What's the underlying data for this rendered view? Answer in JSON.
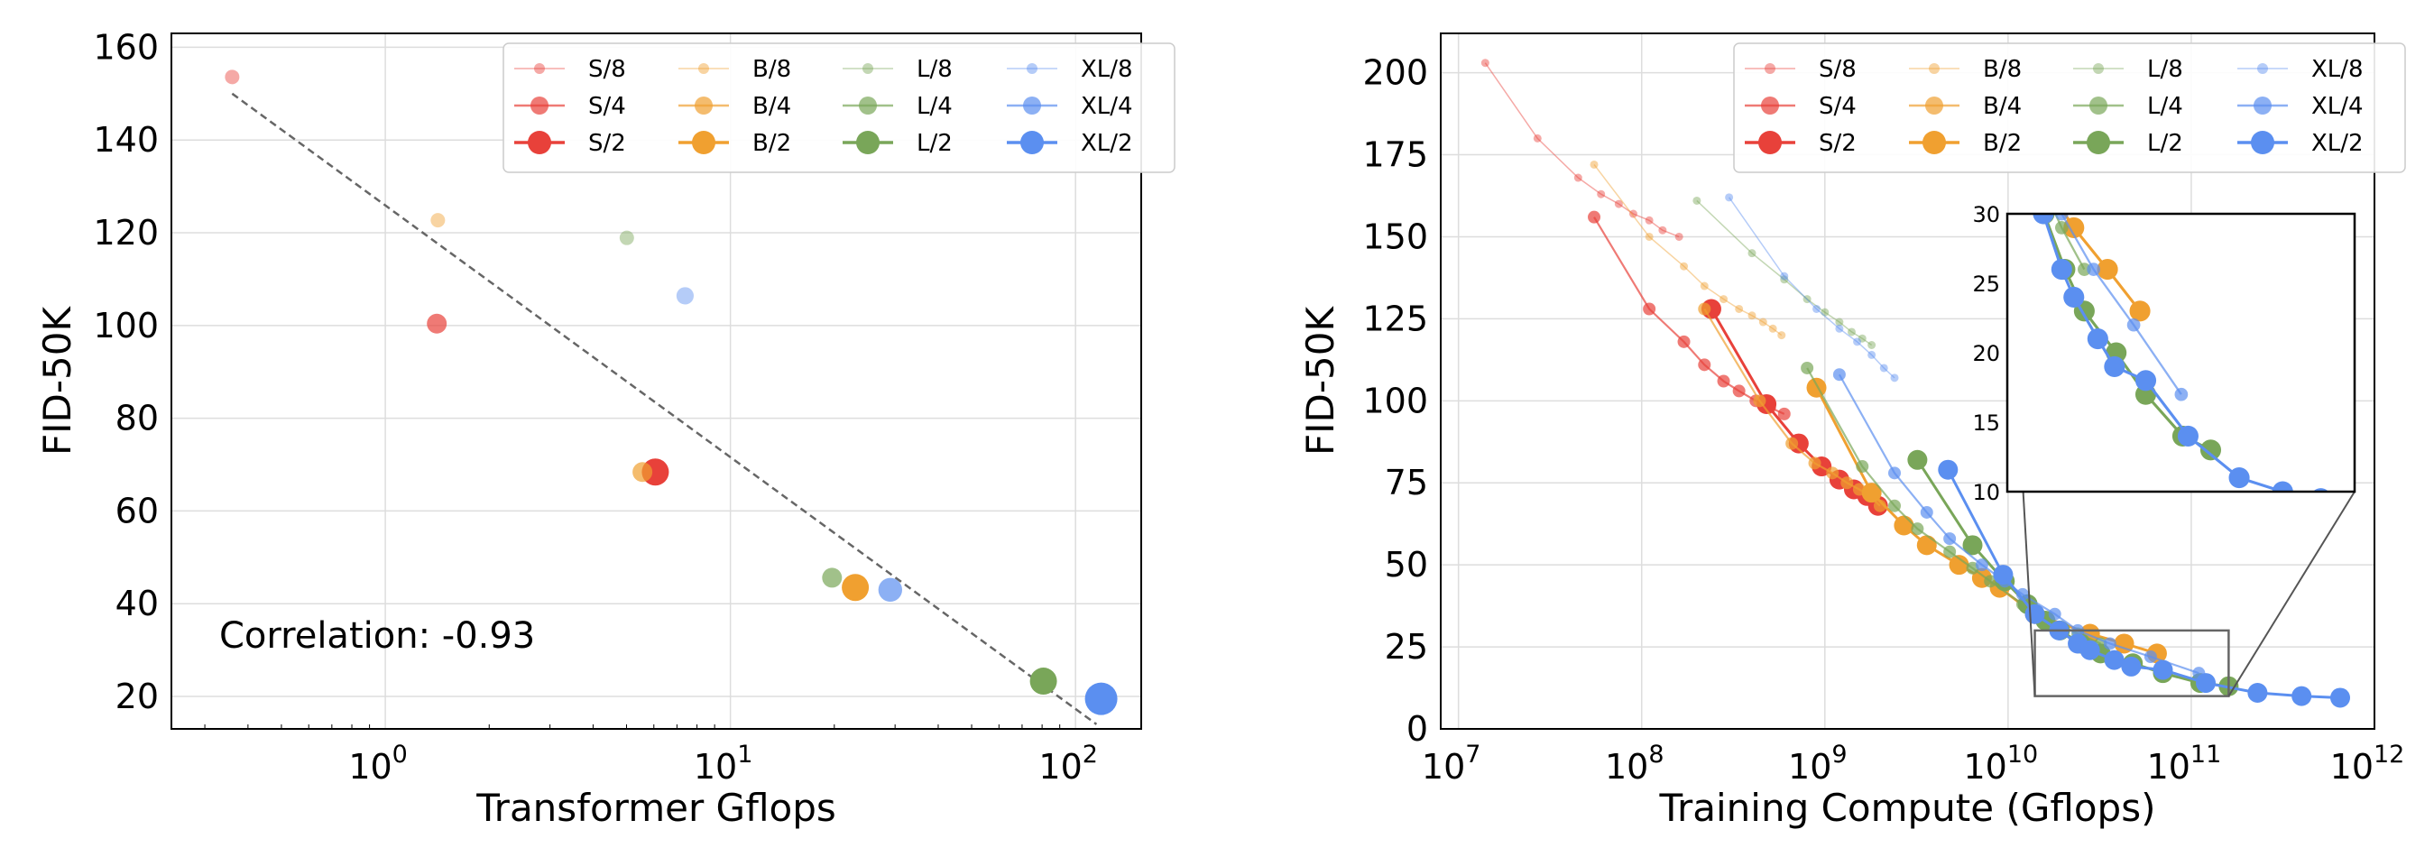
{
  "chart_data": [
    {
      "type": "scatter",
      "xlabel": "Transformer Gflops",
      "ylabel": "FID-50K",
      "xscale": "log",
      "xlim": [
        0.24,
        155
      ],
      "ylim": [
        13,
        163
      ],
      "xticks": [
        {
          "value": 1,
          "base": "10",
          "exp": "0"
        },
        {
          "value": 10,
          "base": "10",
          "exp": "1"
        },
        {
          "value": 100,
          "base": "10",
          "exp": "2"
        }
      ],
      "yticks": [
        "20",
        "40",
        "60",
        "80",
        "100",
        "120",
        "140",
        "160"
      ],
      "grid": true,
      "legend_position": "top-right",
      "legend": [
        "S/8",
        "B/8",
        "L/8",
        "XL/8",
        "S/4",
        "B/4",
        "L/4",
        "XL/4",
        "S/2",
        "B/2",
        "L/2",
        "XL/2"
      ],
      "annotation": "Correlation: -0.93",
      "trend_line": {
        "x": [
          0.36,
          115
        ],
        "y": [
          150,
          14
        ]
      },
      "points": [
        {
          "model": "S/8",
          "gflops": 0.36,
          "fid": 153.6
        },
        {
          "model": "S/4",
          "gflops": 1.41,
          "fid": 100.4
        },
        {
          "model": "S/2",
          "gflops": 6.06,
          "fid": 68.4
        },
        {
          "model": "B/8",
          "gflops": 1.42,
          "fid": 122.7
        },
        {
          "model": "B/4",
          "gflops": 5.56,
          "fid": 68.4
        },
        {
          "model": "B/2",
          "gflops": 23.01,
          "fid": 43.5
        },
        {
          "model": "L/8",
          "gflops": 5.01,
          "fid": 118.9
        },
        {
          "model": "L/4",
          "gflops": 19.7,
          "fid": 45.6
        },
        {
          "model": "L/2",
          "gflops": 80.71,
          "fid": 23.3
        },
        {
          "model": "XL/8",
          "gflops": 7.39,
          "fid": 106.4
        },
        {
          "model": "XL/4",
          "gflops": 29.05,
          "fid": 43.0
        },
        {
          "model": "XL/2",
          "gflops": 118.64,
          "fid": 19.5
        }
      ]
    },
    {
      "type": "line",
      "xlabel": "Training Compute (Gflops)",
      "ylabel": "FID-50K",
      "xscale": "log",
      "xlim": [
        8000000,
        1000000000000
      ],
      "ylim": [
        0,
        212
      ],
      "xticks": [
        {
          "value": 10000000,
          "base": "10",
          "exp": "7"
        },
        {
          "value": 100000000,
          "base": "10",
          "exp": "8"
        },
        {
          "value": 1000000000,
          "base": "10",
          "exp": "9"
        },
        {
          "value": 10000000000,
          "base": "10",
          "exp": "10"
        },
        {
          "value": 100000000000,
          "base": "10",
          "exp": "11"
        },
        {
          "value": 1000000000000,
          "base": "10",
          "exp": "12"
        }
      ],
      "yticks": [
        "0",
        "25",
        "50",
        "75",
        "100",
        "125",
        "150",
        "175",
        "200"
      ],
      "grid": true,
      "legend_position": "top-right",
      "legend": [
        "S/8",
        "B/8",
        "L/8",
        "XL/8",
        "S/4",
        "B/4",
        "L/4",
        "XL/4",
        "S/2",
        "B/2",
        "L/2",
        "XL/2"
      ],
      "inset": {
        "xlim": [
          12000000000,
          1000000000000
        ],
        "ylim": [
          10,
          30
        ],
        "yticks": [
          "10",
          "15",
          "20",
          "25",
          "30"
        ],
        "zoom_box_x": [
          14000000000,
          160000000000
        ],
        "zoom_box_y": [
          10,
          30
        ]
      },
      "series": [
        {
          "name": "S/8",
          "x": [
            14000000,
            27000000,
            45000000,
            60000000,
            75000000,
            90000000,
            110000000,
            130000000,
            160000000
          ],
          "y": [
            203,
            180,
            168,
            163,
            160,
            157,
            155,
            152,
            150
          ]
        },
        {
          "name": "S/4",
          "x": [
            55000000,
            110000000,
            170000000,
            220000000,
            280000000,
            340000000,
            420000000,
            500000000,
            600000000
          ],
          "y": [
            156,
            128,
            118,
            111,
            106,
            103,
            100,
            98,
            96
          ]
        },
        {
          "name": "S/2",
          "x": [
            240000000,
            480000000,
            720000000,
            960000000,
            1200000000,
            1440000000,
            1700000000,
            1950000000
          ],
          "y": [
            128,
            99,
            87,
            80,
            76,
            73,
            71,
            68
          ]
        },
        {
          "name": "B/8",
          "x": [
            55000000,
            110000000,
            170000000,
            220000000,
            280000000,
            340000000,
            400000000,
            460000000,
            520000000,
            580000000
          ],
          "y": [
            172,
            150,
            141,
            135,
            131,
            128,
            126,
            124,
            122,
            120
          ]
        },
        {
          "name": "B/4",
          "x": [
            220000000,
            440000000,
            660000000,
            880000000,
            1100000000,
            1320000000,
            1540000000,
            1760000000,
            2000000000
          ],
          "y": [
            128,
            100,
            87,
            81,
            78,
            75,
            73,
            71,
            68
          ]
        },
        {
          "name": "B/2",
          "x": [
            900000000,
            1800000000,
            2700000000,
            3600000000,
            5400000000,
            7200000000,
            9000000000,
            14000000000,
            28000000000,
            43000000000,
            65000000000
          ],
          "y": [
            104,
            72,
            62,
            56,
            50,
            46,
            43,
            35,
            29,
            26,
            23
          ]
        },
        {
          "name": "L/8",
          "x": [
            200000000,
            400000000,
            600000000,
            800000000,
            1000000000,
            1200000000,
            1400000000,
            1600000000,
            1800000000
          ],
          "y": [
            161,
            145,
            137,
            131,
            127,
            124,
            121,
            119,
            117
          ]
        },
        {
          "name": "L/4",
          "x": [
            800000000,
            1600000000,
            2400000000,
            3200000000,
            4800000000,
            6400000000,
            8000000000,
            12000000000,
            16000000000,
            24000000000,
            32000000000
          ],
          "y": [
            110,
            80,
            68,
            61,
            54,
            49,
            45,
            38,
            34,
            29,
            26
          ]
        },
        {
          "name": "L/2",
          "x": [
            3200000000,
            6400000000,
            9600000000,
            12800000000,
            16000000000,
            19200000000,
            25000000000,
            32000000000,
            48000000000,
            70000000000,
            112000000000,
            160000000000
          ],
          "y": [
            82,
            56,
            45,
            38,
            33,
            30,
            26,
            23,
            20,
            17,
            14,
            13
          ]
        },
        {
          "name": "XL/8",
          "x": [
            300000000,
            600000000,
            900000000,
            1200000000,
            1500000000,
            1800000000,
            2100000000,
            2400000000
          ],
          "y": [
            162,
            138,
            128,
            122,
            118,
            114,
            110,
            107
          ]
        },
        {
          "name": "XL/4",
          "x": [
            1200000000,
            2400000000,
            3600000000,
            4800000000,
            7200000000,
            9600000000,
            12000000000,
            18000000000,
            24000000000,
            36000000000,
            60000000000,
            110000000000
          ],
          "y": [
            108,
            78,
            66,
            58,
            50,
            45,
            41,
            35,
            30,
            26,
            22,
            17
          ]
        },
        {
          "name": "XL/2",
          "x": [
            4700000000,
            9400000000,
            14000000000,
            19000000000,
            24000000000,
            28000000000,
            38000000000,
            47000000000,
            70000000000,
            120000000000,
            230000000000,
            400000000000,
            650000000000
          ],
          "y": [
            79,
            47,
            35,
            30,
            26,
            24,
            21,
            19,
            18,
            14,
            11,
            10,
            9.5
          ]
        }
      ]
    }
  ],
  "colors": {
    "S": "#e8413a",
    "B": "#f0a030",
    "L": "#79a659",
    "XL": "#5b8ff0",
    "grid": "#dddddd",
    "trend": "#666666"
  },
  "series_alpha": {
    "8": 0.45,
    "4": 0.7,
    "2": 1.0
  }
}
